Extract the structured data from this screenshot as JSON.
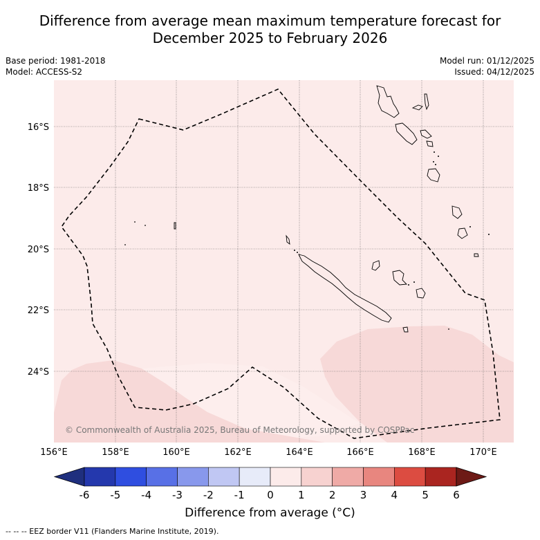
{
  "title_line1": "Difference from average mean maximum temperature forecast for",
  "title_line2": "December 2025 to February 2026",
  "meta": {
    "base_period": "Base period: 1981-2018",
    "model": "Model: ACCESS-S2",
    "model_run": "Model run: 01/12/2025",
    "issued": "Issued: 04/12/2025"
  },
  "axes": {
    "lon_labels": [
      "156°E",
      "158°E",
      "160°E",
      "162°E",
      "164°E",
      "166°E",
      "168°E",
      "170°E"
    ],
    "lat_labels": [
      "16°S",
      "18°S",
      "20°S",
      "22°S",
      "24°S"
    ]
  },
  "copyright": "© Commonwealth of Australia 2025, Bureau of Meteorology, supported by COSPPac",
  "colorbar": {
    "title": "Difference from average (°C)",
    "ticks": [
      "-6",
      "-5",
      "-4",
      "-3",
      "-2",
      "-1",
      "0",
      "1",
      "2",
      "3",
      "4",
      "5",
      "6"
    ],
    "colors": [
      "#1f2f7e",
      "#2438ad",
      "#2f4ee0",
      "#5870e6",
      "#8898ec",
      "#c0c7f3",
      "#e7ebf9",
      "#fcebea",
      "#f7d2d0",
      "#efaaa6",
      "#e8867f",
      "#dc4c41",
      "#aa2520",
      "#6d1a16"
    ]
  },
  "map_colors": {
    "base": "#fcebea",
    "warm_zone": "#f7d9d8",
    "cool_zone": "#fdf0ef"
  },
  "footnote": "--  --  -- EEZ border V11 (Flanders Marine Institute, 2019)."
}
